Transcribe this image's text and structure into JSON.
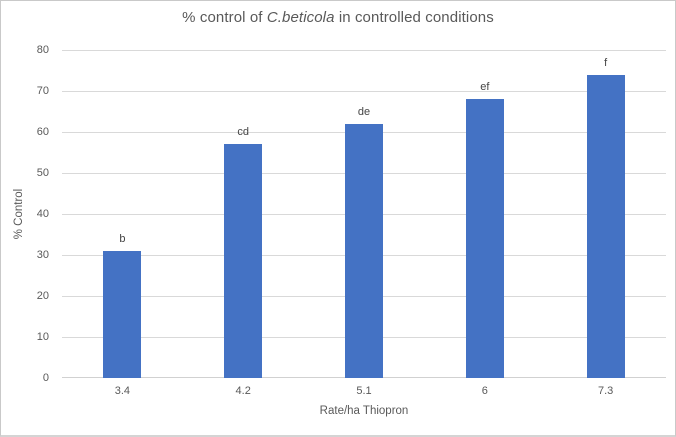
{
  "chart": {
    "title_prefix": "% control of ",
    "title_italic": "C.beticola",
    "title_suffix": " in controlled conditions"
  },
  "chart_data": {
    "type": "bar",
    "title": "% control of C.beticola in controlled conditions",
    "title_italic_part": "C.beticola",
    "categories": [
      "3.4",
      "4.2",
      "5.1",
      "6",
      "7.3"
    ],
    "values": [
      31,
      57,
      62,
      68,
      74
    ],
    "bar_labels": [
      "b",
      "cd",
      "de",
      "ef",
      "f"
    ],
    "series": [
      {
        "name": "% Control",
        "values": [
          31,
          57,
          62,
          68,
          74
        ]
      }
    ],
    "xlabel": "Rate/ha Thiopron",
    "ylabel": "% Control",
    "ylim": [
      0,
      80
    ],
    "ytick_step": 10,
    "yticks": [
      0,
      10,
      20,
      30,
      40,
      50,
      60,
      70,
      80
    ],
    "grid": true,
    "legend": "none",
    "bar_color": "#4472C4"
  },
  "colors": {
    "bar": "#4472C4",
    "axis_text": "#595959",
    "bar_label_text": "#444444",
    "gridline": "#D9D9D9",
    "frame_border": "#C9C9C9",
    "background": "#FFFFFF"
  }
}
